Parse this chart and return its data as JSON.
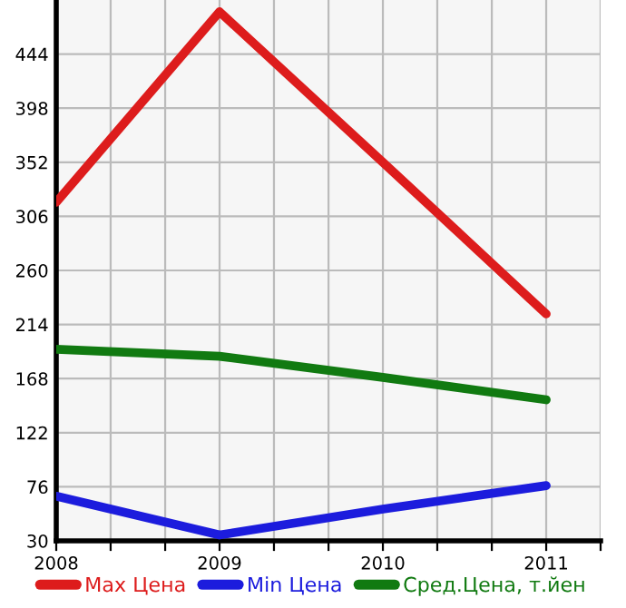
{
  "chart_data": {
    "type": "line",
    "x": [
      2008,
      2009,
      2010,
      2011
    ],
    "series": [
      {
        "name": "Max Цена",
        "color": "#dd1c1c",
        "values": [
          318,
          480,
          352,
          223
        ]
      },
      {
        "name": "Min Цена",
        "color": "#1c1cdd",
        "values": [
          68,
          35,
          57,
          77
        ]
      },
      {
        "name": "Сред.Цена, т.йен",
        "color": "#117a11",
        "values": [
          193,
          187,
          169,
          150
        ]
      }
    ],
    "xlim": [
      2008,
      2011.333
    ],
    "xticks": [
      2008,
      {
        "value": 2008.333,
        "label": null
      },
      {
        "value": 2008.667,
        "label": null
      },
      2009,
      {
        "value": 2009.333,
        "label": null
      },
      {
        "value": 2009.667,
        "label": null
      },
      2010,
      {
        "value": 2010.333,
        "label": null
      },
      {
        "value": 2010.667,
        "label": null
      },
      2011,
      {
        "value": 2011.333,
        "label": null
      }
    ],
    "ylim": [
      30,
      490
    ],
    "yticks": [
      30,
      76,
      122,
      168,
      214,
      260,
      306,
      352,
      398,
      444
    ],
    "grid": true,
    "legend": "bottom",
    "marker": "none",
    "line_style": "solid"
  }
}
